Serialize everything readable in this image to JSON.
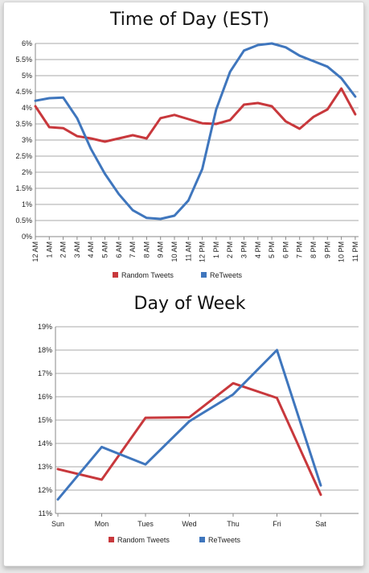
{
  "colors": {
    "random": "#c8383c",
    "retweets": "#3f76bd"
  },
  "chart_data": [
    {
      "type": "line",
      "title": "Time of Day (EST)",
      "xlabel": "",
      "ylabel": "",
      "categories": [
        "12 AM",
        "1 AM",
        "2 AM",
        "3 AM",
        "4 AM",
        "5 AM",
        "6 AM",
        "7 AM",
        "8 AM",
        "9 AM",
        "10 AM",
        "11 AM",
        "12 PM",
        "1 PM",
        "2 PM",
        "3 PM",
        "4 PM",
        "5 PM",
        "6 PM",
        "7 PM",
        "8 PM",
        "9 PM",
        "10 PM",
        "11 PM"
      ],
      "y_tick_labels": [
        "0%",
        "0.5%",
        "1%",
        "1.5%",
        "2%",
        "2.5%",
        "3%",
        "3.5%",
        "4%",
        "4.5%",
        "5%",
        "5.5%",
        "6%"
      ],
      "ylim": [
        0,
        6
      ],
      "grid": true,
      "legend": "bottom",
      "series": [
        {
          "name": "Random Tweets",
          "values": [
            4.05,
            3.4,
            3.37,
            3.12,
            3.05,
            2.95,
            3.05,
            3.15,
            3.05,
            3.68,
            3.78,
            3.65,
            3.52,
            3.5,
            3.62,
            4.1,
            4.15,
            4.05,
            3.58,
            3.35,
            3.72,
            3.95,
            4.6,
            3.8
          ]
        },
        {
          "name": "ReTweets",
          "values": [
            4.22,
            4.3,
            4.32,
            3.68,
            2.72,
            1.95,
            1.32,
            0.82,
            0.58,
            0.55,
            0.65,
            1.12,
            2.1,
            3.95,
            5.12,
            5.78,
            5.95,
            6.0,
            5.88,
            5.62,
            5.45,
            5.28,
            4.92,
            4.35
          ]
        }
      ]
    },
    {
      "type": "line",
      "title": "Day of Week",
      "xlabel": "",
      "ylabel": "",
      "categories": [
        "Sun",
        "Mon",
        "Tues",
        "Wed",
        "Thu",
        "Fri",
        "Sat"
      ],
      "y_tick_labels": [
        "11%",
        "12%",
        "13%",
        "14%",
        "15%",
        "16%",
        "17%",
        "18%",
        "19%"
      ],
      "ylim": [
        11,
        19
      ],
      "grid": true,
      "legend": "bottom",
      "series": [
        {
          "name": "Random Tweets",
          "values": [
            12.9,
            12.45,
            15.1,
            15.12,
            16.58,
            15.95,
            11.8
          ]
        },
        {
          "name": "ReTweets",
          "values": [
            11.6,
            13.85,
            13.1,
            14.95,
            16.1,
            18.0,
            12.2
          ]
        }
      ]
    }
  ]
}
